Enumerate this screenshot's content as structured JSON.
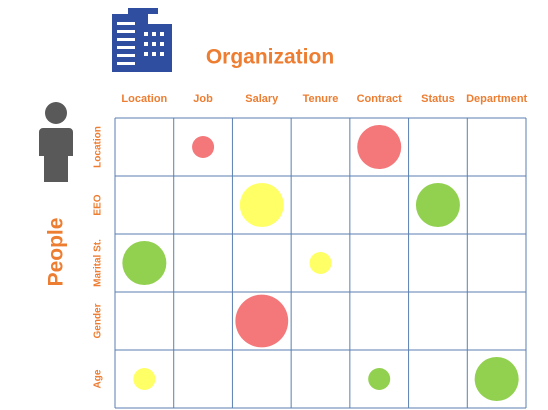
{
  "chart_data": {
    "type": "bubble_matrix",
    "title": "Organization",
    "y_title": "People",
    "x_categories": [
      "Location",
      "Job",
      "Salary",
      "Tenure",
      "Contract",
      "Status",
      "Department"
    ],
    "y_categories": [
      "Location",
      "EEO",
      "Marital St.",
      "Gender",
      "Age"
    ],
    "bubbles": [
      {
        "x": "Job",
        "y": "Location",
        "size": 1,
        "color": "#f4777a"
      },
      {
        "x": "Contract",
        "y": "Location",
        "size": 2,
        "color": "#f4777a"
      },
      {
        "x": "Salary",
        "y": "EEO",
        "size": 2,
        "color": "#ffff66"
      },
      {
        "x": "Status",
        "y": "EEO",
        "size": 2,
        "color": "#92d050"
      },
      {
        "x": "Location",
        "y": "Marital St.",
        "size": 2,
        "color": "#92d050"
      },
      {
        "x": "Tenure",
        "y": "Marital St.",
        "size": 1,
        "color": "#ffff66"
      },
      {
        "x": "Salary",
        "y": "Gender",
        "size": 2.4,
        "color": "#f4777a"
      },
      {
        "x": "Location",
        "y": "Age",
        "size": 1,
        "color": "#ffff66"
      },
      {
        "x": "Contract",
        "y": "Age",
        "size": 1,
        "color": "#92d050"
      },
      {
        "x": "Department",
        "y": "Age",
        "size": 2,
        "color": "#92d050"
      }
    ]
  }
}
